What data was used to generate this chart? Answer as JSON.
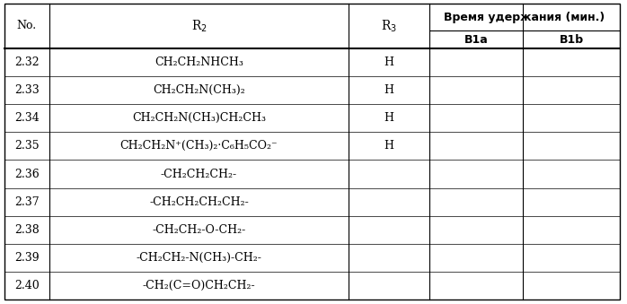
{
  "col_headers": [
    "No.",
    "R₂",
    "R₃",
    "Время удержания (мин.)"
  ],
  "sub_headers": [
    "B1a",
    "B1b"
  ],
  "rows": [
    {
      "no": "2.32",
      "r2": "CH₂CH₂NHCH₃",
      "r3": "H"
    },
    {
      "no": "2.33",
      "r2": "CH₂CH₂N(CH₃)₂",
      "r3": "H"
    },
    {
      "no": "2.34",
      "r2": "CH₂CH₂N(CH₃)CH₂CH₃",
      "r3": "H"
    },
    {
      "no": "2.35",
      "r2": "CH₂CH₂N⁺(CH₃)₂·C₆H₅CO₂⁻",
      "r3": "H"
    },
    {
      "no": "2.36",
      "r2": "-CH₂CH₂CH₂-",
      "r3": ""
    },
    {
      "no": "2.37",
      "r2": "-CH₂CH₂CH₂CH₂-",
      "r3": ""
    },
    {
      "no": "2.38",
      "r2": "-CH₂CH₂-O-CH₂-",
      "r3": ""
    },
    {
      "no": "2.39",
      "r2": "-CH₂CH₂-N(CH₃)-CH₂-",
      "r3": ""
    },
    {
      "no": "2.40",
      "r2": "-CH₂(C=O)CH₂CH₂-",
      "r3": ""
    }
  ],
  "bg_color": "#ffffff",
  "line_color": "#000000",
  "font_size": 9,
  "header_font_size": 9
}
